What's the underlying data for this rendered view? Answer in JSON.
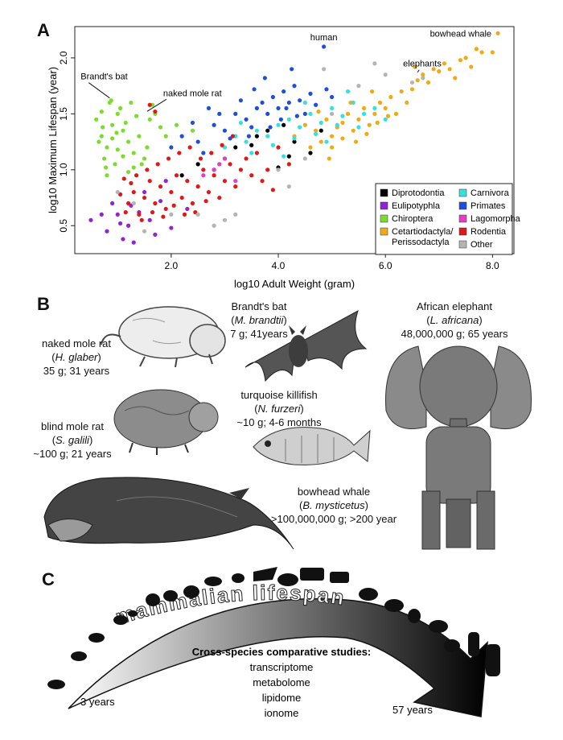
{
  "panels": {
    "a": "A",
    "b": "B",
    "c": "C"
  },
  "chart_data": {
    "type": "scatter",
    "xlabel": "log10 Adult Weight (gram)",
    "ylabel": "log10 Maximum Lifespan (year)",
    "xlim": [
      0.2,
      8.4
    ],
    "ylim": [
      0.25,
      2.28
    ],
    "xticks": [
      "2.0",
      "4.0",
      "6.0",
      "8.0"
    ],
    "yticks": [
      "0.5",
      "1.0",
      "1.5",
      "2.0"
    ],
    "grid": false,
    "legend_position": "bottom-right",
    "series": [
      {
        "name": "Diprotodontia",
        "color": "#000000",
        "points": [
          [
            2.5,
            1.05
          ],
          [
            3.2,
            1.2
          ],
          [
            3.8,
            1.35
          ],
          [
            4.1,
            1.4
          ],
          [
            4.3,
            1.25
          ],
          [
            4.8,
            1.35
          ],
          [
            3.0,
            1.1
          ],
          [
            2.8,
            1.0
          ],
          [
            4.6,
            1.15
          ],
          [
            3.5,
            1.22
          ],
          [
            4.0,
            1.02
          ],
          [
            2.2,
            0.95
          ],
          [
            3.6,
            1.3
          ],
          [
            4.2,
            1.12
          ]
        ]
      },
      {
        "name": "Eulipotyphla",
        "color": "#8e24d6",
        "points": [
          [
            0.5,
            0.55
          ],
          [
            0.8,
            0.45
          ],
          [
            1.0,
            0.6
          ],
          [
            1.1,
            0.38
          ],
          [
            1.2,
            0.5
          ],
          [
            1.3,
            0.35
          ],
          [
            1.4,
            0.62
          ],
          [
            0.9,
            0.7
          ],
          [
            1.6,
            0.55
          ],
          [
            1.8,
            0.72
          ],
          [
            2.0,
            0.48
          ],
          [
            1.5,
            0.8
          ],
          [
            0.7,
            0.6
          ],
          [
            1.9,
            0.9
          ],
          [
            2.3,
            0.65
          ],
          [
            1.05,
            0.52
          ],
          [
            1.25,
            0.68
          ],
          [
            1.7,
            0.42
          ]
        ]
      },
      {
        "name": "Chiroptera",
        "color": "#7cdc2c",
        "points": [
          [
            0.6,
            1.45
          ],
          [
            0.7,
            1.3
          ],
          [
            0.8,
            1.2
          ],
          [
            0.9,
            1.4
          ],
          [
            1.0,
            1.5
          ],
          [
            0.85,
            1.6
          ],
          [
            0.75,
            1.1
          ],
          [
            1.1,
            1.35
          ],
          [
            1.2,
            1.25
          ],
          [
            0.95,
            1.05
          ],
          [
            1.3,
            1.15
          ],
          [
            0.65,
            1.25
          ],
          [
            0.7,
            1.52
          ],
          [
            0.8,
            0.95
          ],
          [
            1.05,
            1.55
          ],
          [
            1.15,
            1.42
          ],
          [
            1.4,
            1.3
          ],
          [
            1.5,
            1.1
          ],
          [
            1.6,
            1.45
          ],
          [
            1.7,
            1.5
          ],
          [
            1.8,
            1.38
          ],
          [
            0.9,
            1.28
          ],
          [
            1.0,
            1.18
          ],
          [
            1.2,
            0.98
          ],
          [
            1.35,
            1.48
          ],
          [
            0.72,
            1.38
          ],
          [
            0.88,
            1.62
          ],
          [
            1.25,
            1.6
          ],
          [
            1.55,
            1.2
          ],
          [
            0.78,
            1.02
          ],
          [
            1.45,
            1.05
          ],
          [
            1.65,
            1.58
          ],
          [
            1.1,
            1.12
          ],
          [
            0.98,
            1.33
          ],
          [
            1.3,
            1.02
          ],
          [
            1.9,
            1.3
          ],
          [
            2.1,
            1.4
          ],
          [
            2.4,
            1.35
          ]
        ]
      },
      {
        "name": "Cetartiodactyla/\nPerissodactyla",
        "color": "#f2aa14",
        "points": [
          [
            4.3,
            1.3
          ],
          [
            4.5,
            1.4
          ],
          [
            4.6,
            1.2
          ],
          [
            4.7,
            1.35
          ],
          [
            4.8,
            1.25
          ],
          [
            4.9,
            1.45
          ],
          [
            5.0,
            1.3
          ],
          [
            5.1,
            1.38
          ],
          [
            5.2,
            1.42
          ],
          [
            5.3,
            1.5
          ],
          [
            5.4,
            1.35
          ],
          [
            5.5,
            1.45
          ],
          [
            5.6,
            1.55
          ],
          [
            5.7,
            1.4
          ],
          [
            5.8,
            1.5
          ],
          [
            5.9,
            1.6
          ],
          [
            6.0,
            1.55
          ],
          [
            6.1,
            1.65
          ],
          [
            6.2,
            1.5
          ],
          [
            6.3,
            1.7
          ],
          [
            6.4,
            1.6
          ],
          [
            6.5,
            1.72
          ],
          [
            6.6,
            1.8
          ],
          [
            6.7,
            1.85
          ],
          [
            6.8,
            1.78
          ],
          [
            6.9,
            1.9
          ],
          [
            7.0,
            1.88
          ],
          [
            7.1,
            1.95
          ],
          [
            7.2,
            1.9
          ],
          [
            7.3,
            1.82
          ],
          [
            7.4,
            1.98
          ],
          [
            7.5,
            2.0
          ],
          [
            7.6,
            1.92
          ],
          [
            7.8,
            2.05
          ],
          [
            8.0,
            2.05
          ],
          [
            5.0,
            1.2
          ],
          [
            5.2,
            1.28
          ],
          [
            4.95,
            1.1
          ],
          [
            5.45,
            1.25
          ],
          [
            5.65,
            1.32
          ],
          [
            5.85,
            1.42
          ],
          [
            6.05,
            1.48
          ],
          [
            5.35,
            1.6
          ],
          [
            5.75,
            1.7
          ],
          [
            4.75,
            1.52
          ],
          [
            6.55,
            1.92
          ],
          [
            7.7,
            2.08
          ],
          [
            8.1,
            2.22
          ]
        ]
      },
      {
        "name": "Carnivora",
        "color": "#34e0e0",
        "points": [
          [
            3.0,
            1.2
          ],
          [
            3.2,
            1.3
          ],
          [
            3.4,
            1.25
          ],
          [
            3.6,
            1.35
          ],
          [
            3.8,
            1.3
          ],
          [
            4.0,
            1.4
          ],
          [
            4.2,
            1.45
          ],
          [
            4.4,
            1.38
          ],
          [
            4.6,
            1.5
          ],
          [
            4.8,
            1.42
          ],
          [
            5.0,
            1.55
          ],
          [
            5.2,
            1.48
          ],
          [
            5.4,
            1.6
          ],
          [
            5.6,
            1.5
          ],
          [
            3.5,
            1.15
          ],
          [
            3.9,
            1.22
          ],
          [
            4.3,
            1.28
          ],
          [
            4.7,
            1.32
          ],
          [
            5.1,
            1.4
          ],
          [
            5.5,
            1.38
          ],
          [
            5.8,
            1.55
          ],
          [
            6.0,
            1.45
          ],
          [
            4.5,
            1.6
          ],
          [
            3.3,
            1.42
          ],
          [
            4.9,
            1.25
          ],
          [
            5.3,
            1.7
          ],
          [
            2.9,
            1.05
          ],
          [
            4.1,
            1.12
          ]
        ]
      },
      {
        "name": "Primates",
        "color": "#1f4fd8",
        "points": [
          [
            2.0,
            1.2
          ],
          [
            2.2,
            1.3
          ],
          [
            2.5,
            1.25
          ],
          [
            2.8,
            1.4
          ],
          [
            3.0,
            1.35
          ],
          [
            3.2,
            1.5
          ],
          [
            3.4,
            1.45
          ],
          [
            3.6,
            1.55
          ],
          [
            3.7,
            1.6
          ],
          [
            3.8,
            1.5
          ],
          [
            3.9,
            1.65
          ],
          [
            4.0,
            1.55
          ],
          [
            4.1,
            1.7
          ],
          [
            4.2,
            1.6
          ],
          [
            4.3,
            1.75
          ],
          [
            4.4,
            1.62
          ],
          [
            4.5,
            1.5
          ],
          [
            4.6,
            1.68
          ],
          [
            4.7,
            1.58
          ],
          [
            4.9,
            1.72
          ],
          [
            5.0,
            1.65
          ],
          [
            2.6,
            1.15
          ],
          [
            3.1,
            1.28
          ],
          [
            3.5,
            1.38
          ],
          [
            3.3,
            1.62
          ],
          [
            2.9,
            1.5
          ],
          [
            4.05,
            1.45
          ],
          [
            3.75,
            1.82
          ],
          [
            4.25,
            1.9
          ],
          [
            4.85,
            2.1
          ],
          [
            2.4,
            1.42
          ],
          [
            3.85,
            1.38
          ],
          [
            4.35,
            1.48
          ],
          [
            3.55,
            1.72
          ],
          [
            4.15,
            1.55
          ],
          [
            2.7,
            1.55
          ],
          [
            3.45,
            1.3
          ]
        ]
      },
      {
        "name": "Lagomorpha",
        "color": "#e23ec8",
        "points": [
          [
            2.6,
            0.95
          ],
          [
            2.8,
            1.0
          ],
          [
            3.0,
            1.1
          ],
          [
            3.2,
            0.9
          ],
          [
            2.9,
            1.05
          ]
        ]
      },
      {
        "name": "Rodentia",
        "color": "#e01818",
        "points": [
          [
            1.2,
            0.7
          ],
          [
            1.3,
            0.8
          ],
          [
            1.4,
            0.6
          ],
          [
            1.5,
            0.75
          ],
          [
            1.6,
            0.9
          ],
          [
            1.7,
            0.7
          ],
          [
            1.8,
            0.85
          ],
          [
            1.9,
            0.65
          ],
          [
            2.0,
            0.8
          ],
          [
            2.1,
            0.95
          ],
          [
            2.2,
            0.75
          ],
          [
            2.3,
            0.9
          ],
          [
            2.4,
            0.7
          ],
          [
            2.5,
            0.85
          ],
          [
            2.6,
            1.0
          ],
          [
            2.7,
            0.8
          ],
          [
            2.8,
            0.95
          ],
          [
            2.9,
            0.75
          ],
          [
            3.0,
            0.9
          ],
          [
            3.1,
            1.05
          ],
          [
            3.2,
            0.85
          ],
          [
            3.3,
            1.0
          ],
          [
            3.4,
            1.1
          ],
          [
            3.5,
            0.95
          ],
          [
            3.6,
            1.15
          ],
          [
            3.8,
            1.0
          ],
          [
            4.0,
            1.2
          ],
          [
            4.2,
            1.05
          ],
          [
            1.35,
            0.95
          ],
          [
            1.55,
            1.0
          ],
          [
            1.75,
            1.05
          ],
          [
            1.95,
            1.1
          ],
          [
            2.15,
            1.15
          ],
          [
            2.35,
            1.2
          ],
          [
            2.55,
            1.1
          ],
          [
            1.45,
            0.55
          ],
          [
            1.65,
            0.62
          ],
          [
            1.85,
            0.58
          ],
          [
            2.05,
            0.68
          ],
          [
            2.25,
            0.6
          ],
          [
            2.45,
            0.62
          ],
          [
            2.65,
            0.72
          ],
          [
            1.25,
            0.88
          ],
          [
            1.15,
            0.62
          ],
          [
            1.6,
            1.58
          ],
          [
            1.7,
            1.52
          ],
          [
            3.7,
            0.9
          ],
          [
            3.9,
            0.82
          ],
          [
            2.75,
            1.15
          ],
          [
            2.95,
            1.22
          ],
          [
            3.15,
            1.3
          ],
          [
            1.05,
            0.78
          ],
          [
            1.12,
            0.92
          ]
        ]
      },
      {
        "name": "Other",
        "color": "#b4b4b4",
        "points": [
          [
            1.0,
            0.8
          ],
          [
            1.3,
            0.7
          ],
          [
            2.0,
            0.6
          ],
          [
            2.5,
            0.6
          ],
          [
            3.0,
            0.55
          ],
          [
            3.2,
            0.6
          ],
          [
            4.0,
            1.0
          ],
          [
            4.5,
            1.1
          ],
          [
            5.0,
            1.5
          ],
          [
            5.5,
            1.75
          ],
          [
            6.0,
            1.85
          ],
          [
            6.5,
            1.78
          ],
          [
            6.7,
            1.82
          ],
          [
            1.5,
            0.45
          ],
          [
            2.8,
            0.5
          ],
          [
            4.2,
            0.85
          ],
          [
            5.8,
            1.95
          ],
          [
            4.85,
            1.9
          ]
        ]
      }
    ],
    "annotations": [
      {
        "text": "Brandt's bat",
        "x": 0.85,
        "y": 1.62
      },
      {
        "text": "naked mole rat",
        "x": 1.55,
        "y": 1.5
      },
      {
        "text": "human",
        "x": 4.85,
        "y": 2.1
      },
      {
        "text": "bowhead whale",
        "x": 8.1,
        "y": 2.22
      },
      {
        "text": "elephants",
        "x": 6.6,
        "y": 1.85
      }
    ]
  },
  "panel_b": {
    "nmr": {
      "name": "naked mole rat",
      "sci": "H. glaber",
      "stats": "35 g; 31 years"
    },
    "bat": {
      "name": "Brandt's bat",
      "sci": "M. brandtii",
      "stats": "7 g; 41years"
    },
    "elephant": {
      "name": "African elephant",
      "sci": "L. africana",
      "stats": "48,000,000 g; 65 years"
    },
    "killifish": {
      "name": "turquoise killifish",
      "sci": "N. furzeri",
      "stats": "~10 g; 4-6 months"
    },
    "bmr": {
      "name": "blind mole rat",
      "sci": "S. galili",
      "stats": "~100 g; 21 years"
    },
    "whale": {
      "name": "bowhead whale",
      "sci": "B. mysticetus",
      "stats": ">100,000,000 g; >200 year"
    }
  },
  "panel_c": {
    "arrow_label": "mammalian lifespan",
    "studies_title": "Cross-species comparative studies:",
    "studies": [
      "transcriptome",
      "metabolome",
      "lipidome",
      "ionome"
    ],
    "left_value": "3 years",
    "right_value": "57 years"
  }
}
